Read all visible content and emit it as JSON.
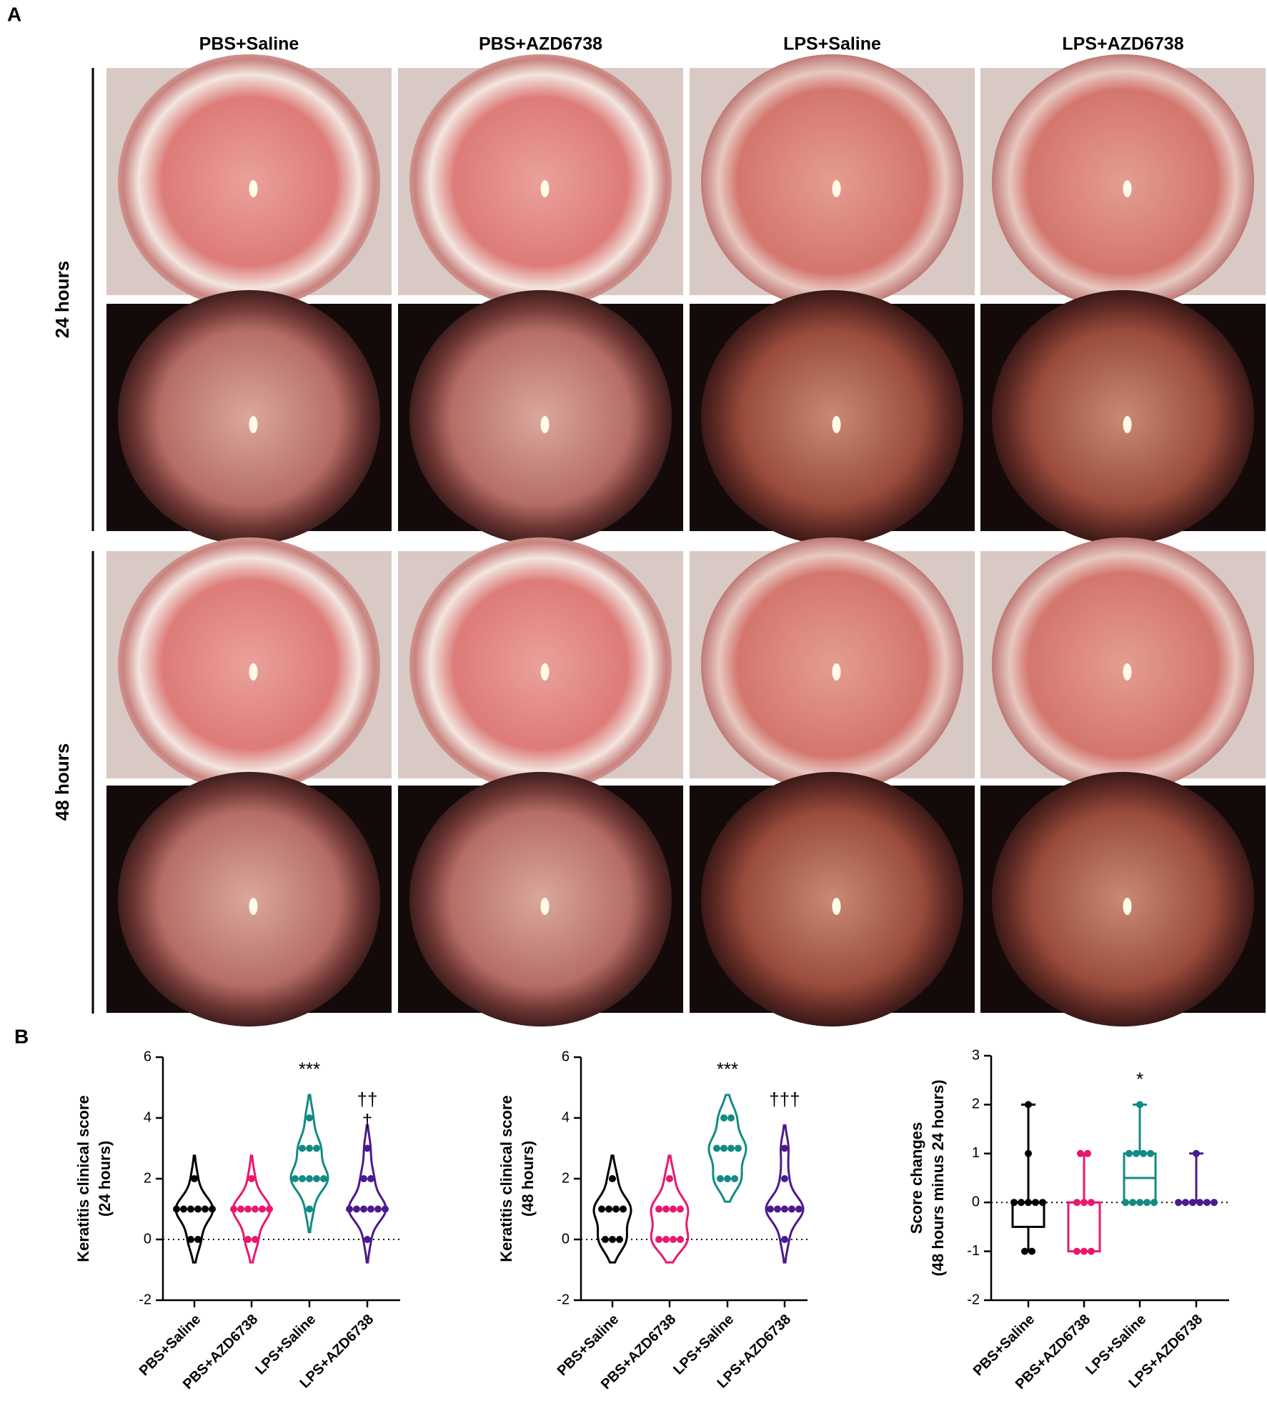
{
  "figure": {
    "panel_labels": [
      "A",
      "B"
    ],
    "columns": [
      "PBS+Saline",
      "PBS+AZD6738",
      "LPS+Saline",
      "LPS+AZD6738"
    ],
    "rows": [
      "24 hours",
      "48 hours"
    ]
  },
  "chart_data": [
    {
      "type": "violin",
      "ylabel": [
        "Keratitis clinical score",
        "(24 hours)"
      ],
      "categories": [
        "PBS+Saline",
        "PBS+AZD6738",
        "LPS+Saline",
        "LPS+AZD6738"
      ],
      "series": [
        {
          "color": "#000000",
          "values": [
            2,
            1,
            1,
            1,
            1,
            1,
            1,
            0,
            0
          ]
        },
        {
          "color": "#e8186e",
          "values": [
            2,
            1,
            1,
            1,
            1,
            1,
            1,
            0,
            0
          ]
        },
        {
          "color": "#138a84",
          "values": [
            4,
            3,
            3,
            3,
            2,
            2,
            2,
            2,
            2,
            1
          ]
        },
        {
          "color": "#4b1a8c",
          "values": [
            3,
            2,
            2,
            1,
            1,
            1,
            1,
            1,
            1,
            0
          ]
        }
      ],
      "annotations": [
        null,
        null,
        [
          "***"
        ],
        [
          "††",
          "†"
        ]
      ],
      "ylim": [
        -2,
        6
      ],
      "yticks": [
        -2,
        0,
        2,
        4,
        6
      ],
      "reference_line": 0
    },
    {
      "type": "violin",
      "ylabel": [
        "Keratitis clinical score",
        "(48 hours)"
      ],
      "categories": [
        "PBS+Saline",
        "PBS+AZD6738",
        "LPS+Saline",
        "LPS+AZD6738"
      ],
      "series": [
        {
          "color": "#000000",
          "values": [
            2,
            1,
            1,
            1,
            1,
            0,
            0,
            0
          ]
        },
        {
          "color": "#e8186e",
          "values": [
            2,
            1,
            1,
            1,
            1,
            0,
            0,
            0,
            0
          ]
        },
        {
          "color": "#138a84",
          "values": [
            4,
            4,
            3,
            3,
            3,
            3,
            2,
            2,
            2
          ]
        },
        {
          "color": "#4b1a8c",
          "values": [
            3,
            2,
            1,
            1,
            1,
            1,
            1,
            0
          ]
        }
      ],
      "annotations": [
        null,
        null,
        [
          "***"
        ],
        [
          "†††"
        ]
      ],
      "ylim": [
        -2,
        6
      ],
      "yticks": [
        -2,
        0,
        2,
        4,
        6
      ],
      "reference_line": 0
    },
    {
      "type": "box",
      "ylabel": [
        "Score changes",
        "(48 hours minus 24 hours)"
      ],
      "categories": [
        "PBS+Saline",
        "PBS+AZD6738",
        "LPS+Saline",
        "LPS+AZD6738"
      ],
      "series": [
        {
          "color": "#000000",
          "values": [
            2,
            1,
            0,
            0,
            0,
            0,
            0,
            -1,
            -1
          ],
          "box": {
            "min": -1,
            "q1": -0.5,
            "median": 0,
            "q3": 0,
            "max": 2
          }
        },
        {
          "color": "#e8186e",
          "values": [
            1,
            1,
            0,
            0,
            0,
            -1,
            -1,
            -1
          ],
          "box": {
            "min": -1,
            "q1": -1,
            "median": 0,
            "q3": 0,
            "max": 1
          }
        },
        {
          "color": "#138a84",
          "values": [
            2,
            1,
            1,
            1,
            1,
            0,
            0,
            0,
            0,
            0
          ],
          "box": {
            "min": 0,
            "q1": 0,
            "median": 0.5,
            "q3": 1,
            "max": 2
          }
        },
        {
          "color": "#4b1a8c",
          "values": [
            1,
            0,
            0,
            0,
            0,
            0,
            0
          ],
          "box": {
            "min": 0,
            "q1": 0,
            "median": 0,
            "q3": 0,
            "max": 1
          }
        }
      ],
      "annotations": [
        null,
        null,
        [
          "*"
        ],
        null
      ],
      "ylim": [
        -2,
        3
      ],
      "yticks": [
        -2,
        -1,
        0,
        1,
        2,
        3
      ],
      "reference_line": 0
    }
  ]
}
